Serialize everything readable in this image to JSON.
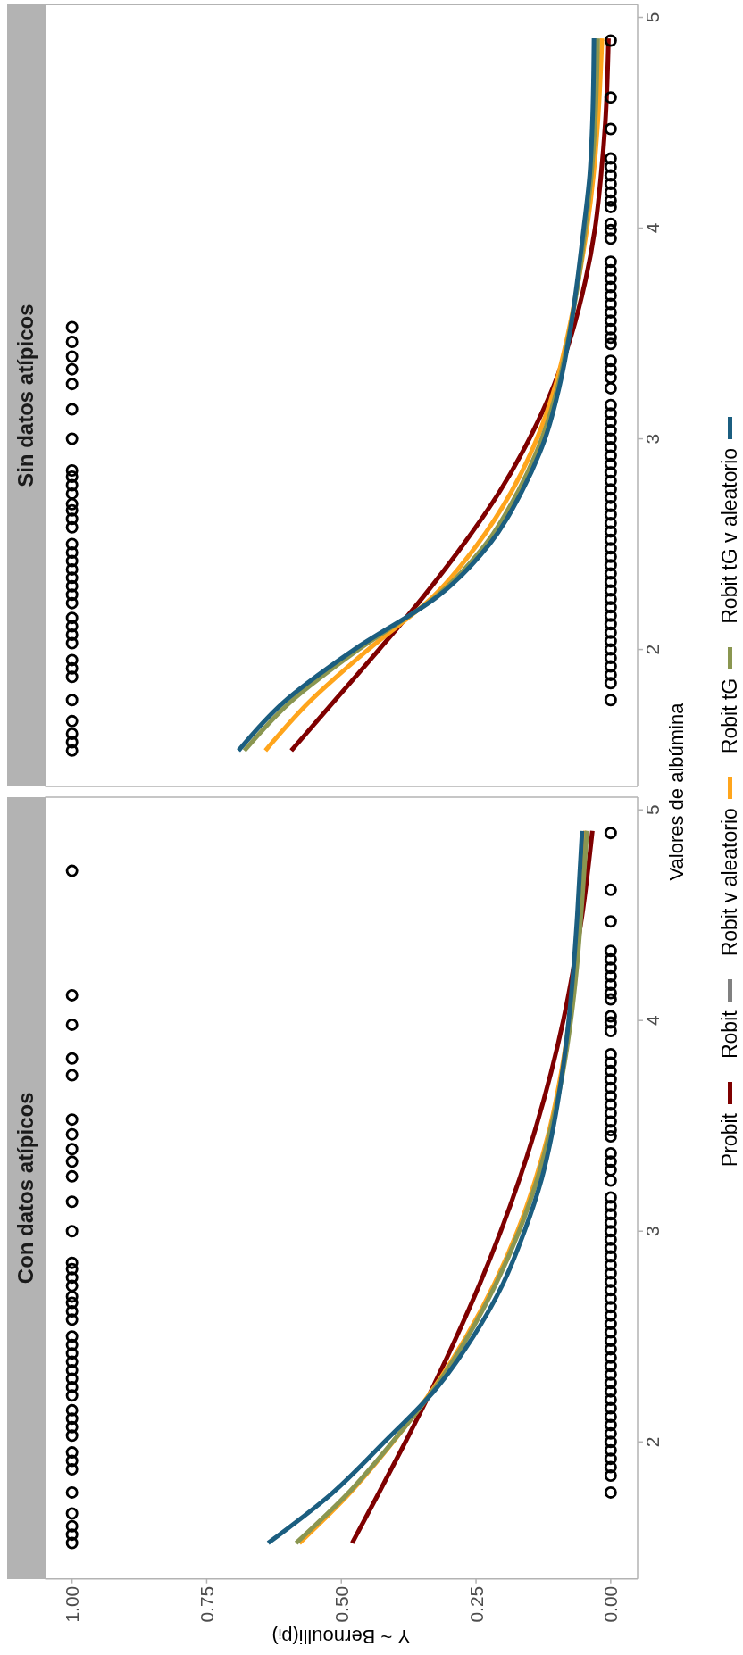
{
  "chart_data": [
    {
      "type": "scatter",
      "title": "Sin datos atípicos",
      "ylabel": "Valores de albúmina",
      "xlim": [
        1.05,
        -0.05
      ],
      "ylim": [
        1.35,
        5.06
      ],
      "yticks": [
        2,
        3,
        4,
        5
      ],
      "tick_labels": "y",
      "legend": "right",
      "series": [
        {
          "marker": "circle",
          "color": "#000000",
          "values": [
            1.52,
            1.56,
            1.6,
            1.66,
            1.76,
            1.87,
            1.91,
            1.95,
            2.03,
            2.07,
            2.11,
            2.15,
            2.22,
            2.26,
            2.3,
            2.34,
            2.38,
            2.42,
            2.46,
            2.5,
            2.58,
            2.62,
            2.66,
            2.69,
            2.74,
            2.78,
            2.82,
            2.85,
            3.0,
            3.14,
            3.26,
            3.33,
            3.39,
            3.46,
            3.53,
            1.76,
            1.84,
            1.88,
            1.92,
            1.96,
            2.0,
            2.04,
            2.08,
            2.12,
            2.16,
            2.2,
            2.24,
            2.28,
            2.32,
            2.36,
            2.4,
            2.44,
            2.48,
            2.52,
            2.56,
            2.6,
            2.64,
            2.68,
            2.72,
            2.76,
            2.8,
            2.84,
            2.88,
            2.92,
            2.96,
            3.0,
            3.04,
            3.08,
            3.12,
            3.16,
            3.24,
            3.29,
            3.33,
            3.37,
            3.45,
            3.48,
            3.52,
            3.56,
            3.6,
            3.64,
            3.68,
            3.72,
            3.76,
            3.8,
            3.84,
            3.95,
            3.99,
            4.02,
            4.1,
            4.13,
            4.17,
            4.21,
            4.25,
            4.29,
            4.33,
            4.47,
            4.62,
            4.89
          ],
          "x": [
            1,
            1,
            1,
            1,
            1,
            1,
            1,
            1,
            1,
            1,
            1,
            1,
            1,
            1,
            1,
            1,
            1,
            1,
            1,
            1,
            1,
            1,
            1,
            1,
            1,
            1,
            1,
            1,
            1,
            1,
            1,
            1,
            1,
            1,
            1,
            0,
            0,
            0,
            0,
            0,
            0,
            0,
            0,
            0,
            0,
            0,
            0,
            0,
            0,
            0,
            0,
            0,
            0,
            0,
            0,
            0,
            0,
            0,
            0,
            0,
            0,
            0,
            0,
            0,
            0,
            0,
            0,
            0,
            0,
            0,
            0,
            0,
            0,
            0,
            0,
            0,
            0,
            0,
            0,
            0,
            0,
            0,
            0,
            0,
            0,
            0,
            0,
            0,
            0,
            0,
            0,
            0,
            0,
            0,
            0,
            0,
            0,
            0
          ]
        },
        {
          "type": "line",
          "name": "Probit",
          "color": "#7f0000",
          "values": [
            1.52,
            1.75,
            2,
            2.25,
            2.5,
            2.75,
            3,
            3.25,
            3.5,
            3.75,
            4,
            4.25,
            4.5,
            4.9
          ],
          "x": [
            0.593,
            0.515,
            0.43,
            0.348,
            0.273,
            0.206,
            0.151,
            0.106,
            0.072,
            0.047,
            0.029,
            0.018,
            0.01,
            0.004
          ]
        },
        {
          "type": "line",
          "name": "Robit",
          "color": "#808080",
          "values": [
            null
          ]
        },
        {
          "type": "line",
          "name": "Robit v aleatorio",
          "color": "#ffa51c",
          "values": [
            1.52,
            1.75,
            2,
            2.25,
            2.5,
            2.75,
            3,
            3.25,
            3.5,
            3.75,
            4,
            4.25,
            4.5,
            4.9
          ],
          "x": [
            0.641,
            0.56,
            0.45,
            0.33,
            0.247,
            0.184,
            0.137,
            0.103,
            0.079,
            0.06,
            0.044,
            0.032,
            0.024,
            0.016
          ]
        },
        {
          "type": "line",
          "name": "Robit tG",
          "color": "#8a9650",
          "values": [
            1.52,
            1.75,
            2,
            2.25,
            2.5,
            2.75,
            3,
            3.25,
            3.5,
            3.75,
            4,
            4.25,
            4.5,
            4.9
          ],
          "x": [
            0.68,
            0.595,
            0.468,
            0.325,
            0.232,
            0.172,
            0.128,
            0.098,
            0.077,
            0.06,
            0.047,
            0.036,
            0.029,
            0.024
          ]
        },
        {
          "type": "line",
          "name": "Robit tG v aleatorio",
          "color": "#1b5e80",
          "values": [
            1.52,
            1.75,
            2,
            2.25,
            2.5,
            2.75,
            3,
            3.25,
            3.5,
            3.75,
            4,
            4.25,
            4.5,
            4.9
          ],
          "x": [
            0.691,
            0.607,
            0.476,
            0.322,
            0.225,
            0.165,
            0.122,
            0.095,
            0.076,
            0.062,
            0.05,
            0.039,
            0.034,
            0.031
          ]
        }
      ]
    },
    {
      "type": "scatter",
      "title": "Con datos atípicos",
      "xlabel": "Y ~ Bernoulli(pᵢ)",
      "xlim": [
        1.05,
        -0.05
      ],
      "xticks": [
        {
          "value": 1,
          "label": "1.00"
        },
        {
          "value": 0.75,
          "label": "0.75"
        },
        {
          "value": 0.5,
          "label": "0.50"
        },
        {
          "value": 0.25,
          "label": "0.25"
        },
        {
          "value": 0,
          "label": "0.00"
        }
      ],
      "ylim": [
        1.35,
        5.06
      ],
      "yticks": [
        2,
        3,
        4,
        5
      ],
      "series": [
        {
          "marker": "circle",
          "color": "#000000",
          "values": [
            1.52,
            1.56,
            1.6,
            1.66,
            1.76,
            1.87,
            1.91,
            1.95,
            2.03,
            2.07,
            2.11,
            2.15,
            2.22,
            2.26,
            2.3,
            2.34,
            2.38,
            2.42,
            2.46,
            2.5,
            2.58,
            2.62,
            2.66,
            2.69,
            2.74,
            2.78,
            2.82,
            2.85,
            3.0,
            3.14,
            3.26,
            3.33,
            3.39,
            3.46,
            3.53,
            3.74,
            3.82,
            3.98,
            4.12,
            4.71,
            1.76,
            1.84,
            1.88,
            1.92,
            1.96,
            2.0,
            2.04,
            2.08,
            2.12,
            2.16,
            2.2,
            2.24,
            2.28,
            2.32,
            2.36,
            2.4,
            2.44,
            2.48,
            2.52,
            2.56,
            2.6,
            2.64,
            2.68,
            2.72,
            2.76,
            2.8,
            2.84,
            2.88,
            2.92,
            2.96,
            3.0,
            3.04,
            3.08,
            3.12,
            3.16,
            3.24,
            3.29,
            3.33,
            3.37,
            3.45,
            3.48,
            3.52,
            3.56,
            3.6,
            3.64,
            3.68,
            3.72,
            3.76,
            3.8,
            3.84,
            3.95,
            3.99,
            4.02,
            4.1,
            4.13,
            4.17,
            4.21,
            4.25,
            4.29,
            4.33,
            4.47,
            4.62,
            4.89
          ],
          "x": [
            1,
            1,
            1,
            1,
            1,
            1,
            1,
            1,
            1,
            1,
            1,
            1,
            1,
            1,
            1,
            1,
            1,
            1,
            1,
            1,
            1,
            1,
            1,
            1,
            1,
            1,
            1,
            1,
            1,
            1,
            1,
            1,
            1,
            1,
            1,
            1,
            1,
            1,
            1,
            1,
            0,
            0,
            0,
            0,
            0,
            0,
            0,
            0,
            0,
            0,
            0,
            0,
            0,
            0,
            0,
            0,
            0,
            0,
            0,
            0,
            0,
            0,
            0,
            0,
            0,
            0,
            0,
            0,
            0,
            0,
            0,
            0,
            0,
            0,
            0,
            0,
            0,
            0,
            0,
            0,
            0,
            0,
            0,
            0,
            0,
            0,
            0,
            0,
            0,
            0,
            0,
            0,
            0,
            0,
            0,
            0,
            0,
            0,
            0,
            0,
            0,
            0,
            0
          ]
        },
        {
          "type": "line",
          "color": "#7f0000",
          "values": [
            1.52,
            1.75,
            2,
            2.25,
            2.5,
            2.75,
            3,
            3.25,
            3.5,
            3.75,
            4,
            4.25,
            4.5,
            4.9
          ],
          "x": [
            0.48,
            0.432,
            0.381,
            0.332,
            0.286,
            0.243,
            0.204,
            0.169,
            0.138,
            0.111,
            0.088,
            0.069,
            0.053,
            0.034
          ]
        },
        {
          "type": "line",
          "color": "#ffa51c",
          "values": [
            1.52,
            1.75,
            2,
            2.25,
            2.5,
            2.75,
            3,
            3.25,
            3.5,
            3.75,
            4,
            4.25,
            4.5,
            4.9
          ],
          "x": [
            0.578,
            0.487,
            0.404,
            0.33,
            0.268,
            0.216,
            0.173,
            0.139,
            0.112,
            0.092,
            0.077,
            0.066,
            0.058,
            0.047
          ]
        },
        {
          "type": "line",
          "color": "#8a9650",
          "values": [
            1.52,
            1.75,
            2,
            2.25,
            2.5,
            2.75,
            3,
            3.25,
            3.5,
            3.75,
            4,
            4.25,
            4.5,
            4.9
          ],
          "x": [
            0.584,
            0.49,
            0.405,
            0.328,
            0.265,
            0.213,
            0.17,
            0.136,
            0.11,
            0.089,
            0.074,
            0.063,
            0.055,
            0.044
          ]
        },
        {
          "type": "line",
          "color": "#1b5e80",
          "values": [
            1.52,
            1.75,
            2,
            2.25,
            2.5,
            2.75,
            3,
            3.25,
            3.5,
            3.75,
            4,
            4.25,
            4.5,
            4.9
          ],
          "x": [
            0.636,
            0.52,
            0.42,
            0.325,
            0.255,
            0.2,
            0.16,
            0.128,
            0.106,
            0.09,
            0.078,
            0.069,
            0.062,
            0.053
          ]
        }
      ]
    }
  ]
}
